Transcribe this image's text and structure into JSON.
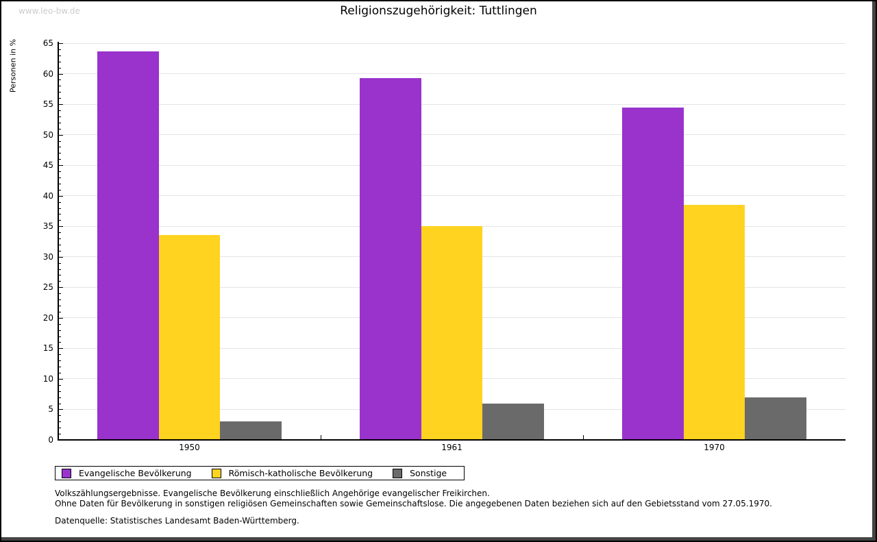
{
  "watermark": "www.leo-bw.de",
  "header": {
    "title": "Religionszugehörigkeit: Tuttlingen"
  },
  "chart_data": {
    "type": "bar",
    "title": "Religionszugehörigkeit: Tuttlingen",
    "categories": [
      "1950",
      "1961",
      "1970"
    ],
    "series": [
      {
        "name": "Evangelische Bevölkerung",
        "color": "#9933cc",
        "values": [
          63.7,
          59.3,
          54.4
        ]
      },
      {
        "name": "Römisch-katholische Bevölkerung",
        "color": "#ffd320",
        "values": [
          33.6,
          35.0,
          38.5
        ]
      },
      {
        "name": "Sonstige",
        "color": "#6a6a6a",
        "values": [
          3.0,
          5.9,
          7.0
        ]
      }
    ],
    "xlabel": "",
    "ylabel": "Personen in %",
    "ylim": [
      0,
      65
    ],
    "ytick_step": 5,
    "yminor_step": 1,
    "grid": true,
    "legend_position": "bottom"
  },
  "footer": {
    "line1": "Volkszählungsergebnisse. Evangelische Bevölkerung einschließlich Angehörige evangelischer Freikirchen.",
    "line2": "Ohne Daten für Bevölkerung in sonstigen religiösen Gemeinschaften sowie Gemeinschaftslose. Die angegebenen Daten beziehen sich auf den Gebietsstand vom 27.05.1970.",
    "source": "Datenquelle: Statistisches Landesamt Baden-Württemberg."
  },
  "frame_colors": {
    "border": "#000000",
    "shadow": "#434343",
    "gridline": "#e4e4e4"
  }
}
